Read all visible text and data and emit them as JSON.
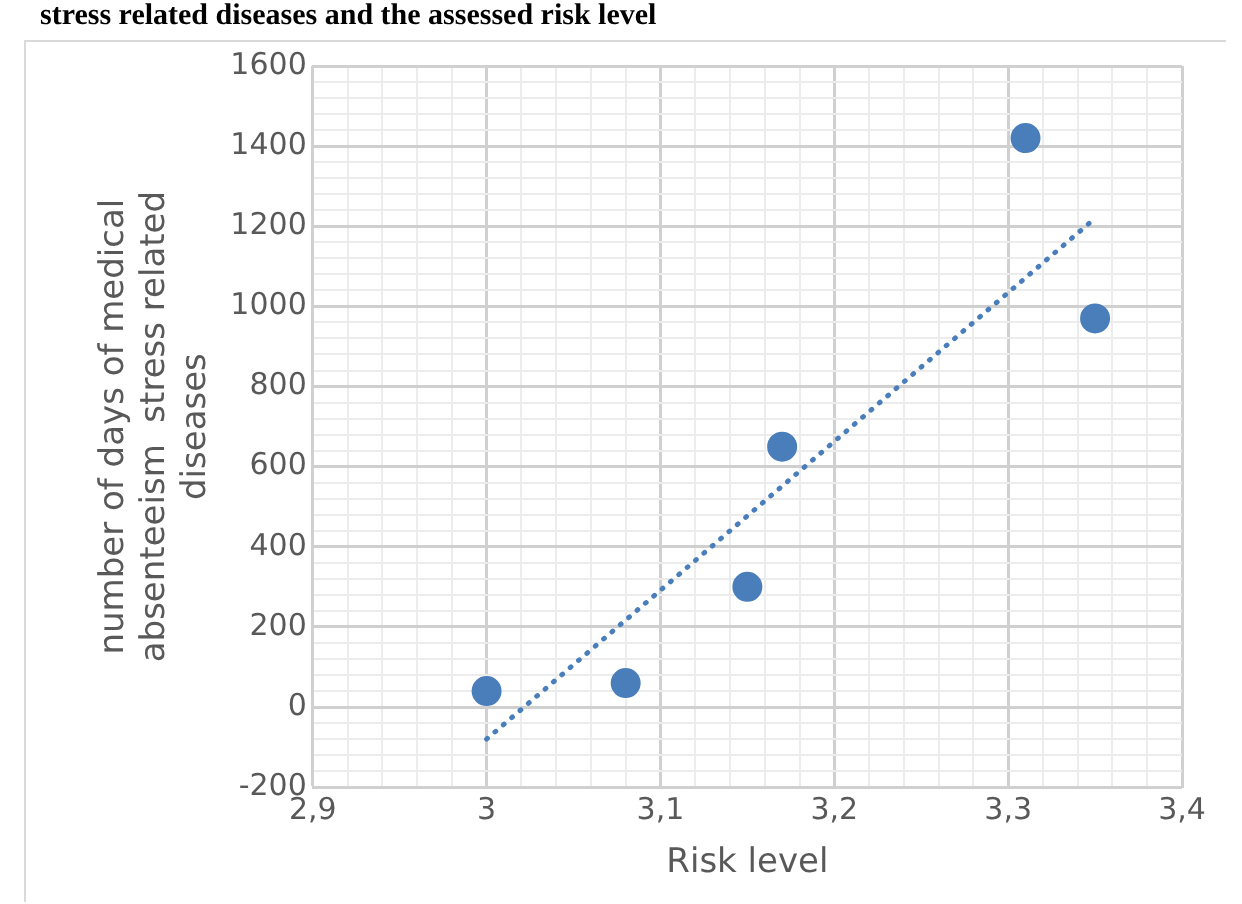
{
  "chart_data": {
    "type": "scatter",
    "title": "stress related diseases and the assessed risk level",
    "xlabel": "Risk level",
    "ylabel": "number of days of medical\nabsenteeism  stress related\ndiseases",
    "series": [
      {
        "type": "scatter",
        "color": "#4a7ebb",
        "x": [
          3.0,
          3.08,
          3.15,
          3.17,
          3.31,
          3.35
        ],
        "values": [
          40,
          60,
          300,
          650,
          1420,
          970
        ],
        "marker": "circle"
      },
      {
        "type": "line",
        "color": "#4a7ebb",
        "x": [
          3.0,
          3.35
        ],
        "values": [
          -80,
          1220
        ],
        "line_style": "dotted",
        "marker": "none"
      }
    ],
    "xlim": [
      2.9,
      3.4
    ],
    "xticks": [
      {
        "value": 2.9,
        "label": "2,9"
      },
      {
        "value": 2.92,
        "label": null
      },
      {
        "value": 2.94,
        "label": null
      },
      {
        "value": 2.96,
        "label": null
      },
      {
        "value": 2.98,
        "label": null
      },
      {
        "value": 3.0,
        "label": "3"
      },
      {
        "value": 3.02,
        "label": null
      },
      {
        "value": 3.04,
        "label": null
      },
      {
        "value": 3.06,
        "label": null
      },
      {
        "value": 3.08,
        "label": null
      },
      {
        "value": 3.1,
        "label": "3,1"
      },
      {
        "value": 3.12,
        "label": null
      },
      {
        "value": 3.14,
        "label": null
      },
      {
        "value": 3.16,
        "label": null
      },
      {
        "value": 3.18,
        "label": null
      },
      {
        "value": 3.2,
        "label": "3,2"
      },
      {
        "value": 3.22,
        "label": null
      },
      {
        "value": 3.24,
        "label": null
      },
      {
        "value": 3.26,
        "label": null
      },
      {
        "value": 3.28,
        "label": null
      },
      {
        "value": 3.3,
        "label": "3,3"
      },
      {
        "value": 3.32,
        "label": null
      },
      {
        "value": 3.34,
        "label": null
      },
      {
        "value": 3.36,
        "label": null
      },
      {
        "value": 3.38,
        "label": null
      },
      {
        "value": 3.4,
        "label": "3,4"
      }
    ],
    "ylim": [
      -200,
      1600
    ],
    "yticks": [
      -200,
      {
        "value": -160,
        "label": null
      },
      {
        "value": -120,
        "label": null
      },
      {
        "value": -80,
        "label": null
      },
      {
        "value": -40,
        "label": null
      },
      0,
      {
        "value": 40,
        "label": null
      },
      {
        "value": 80,
        "label": null
      },
      {
        "value": 120,
        "label": null
      },
      {
        "value": 160,
        "label": null
      },
      200,
      {
        "value": 240,
        "label": null
      },
      {
        "value": 280,
        "label": null
      },
      {
        "value": 320,
        "label": null
      },
      {
        "value": 360,
        "label": null
      },
      400,
      {
        "value": 440,
        "label": null
      },
      {
        "value": 480,
        "label": null
      },
      {
        "value": 520,
        "label": null
      },
      {
        "value": 560,
        "label": null
      },
      600,
      {
        "value": 640,
        "label": null
      },
      {
        "value": 680,
        "label": null
      },
      {
        "value": 720,
        "label": null
      },
      {
        "value": 760,
        "label": null
      },
      800,
      {
        "value": 840,
        "label": null
      },
      {
        "value": 880,
        "label": null
      },
      {
        "value": 920,
        "label": null
      },
      {
        "value": 960,
        "label": null
      },
      1000,
      {
        "value": 1040,
        "label": null
      },
      {
        "value": 1080,
        "label": null
      },
      {
        "value": 1120,
        "label": null
      },
      {
        "value": 1160,
        "label": null
      },
      1200,
      {
        "value": 1240,
        "label": null
      },
      {
        "value": 1280,
        "label": null
      },
      {
        "value": 1320,
        "label": null
      },
      {
        "value": 1360,
        "label": null
      },
      1400,
      {
        "value": 1440,
        "label": null
      },
      {
        "value": 1480,
        "label": null
      },
      {
        "value": 1520,
        "label": null
      },
      {
        "value": 1560,
        "label": null
      },
      1600
    ],
    "grid": true,
    "legend": false
  }
}
